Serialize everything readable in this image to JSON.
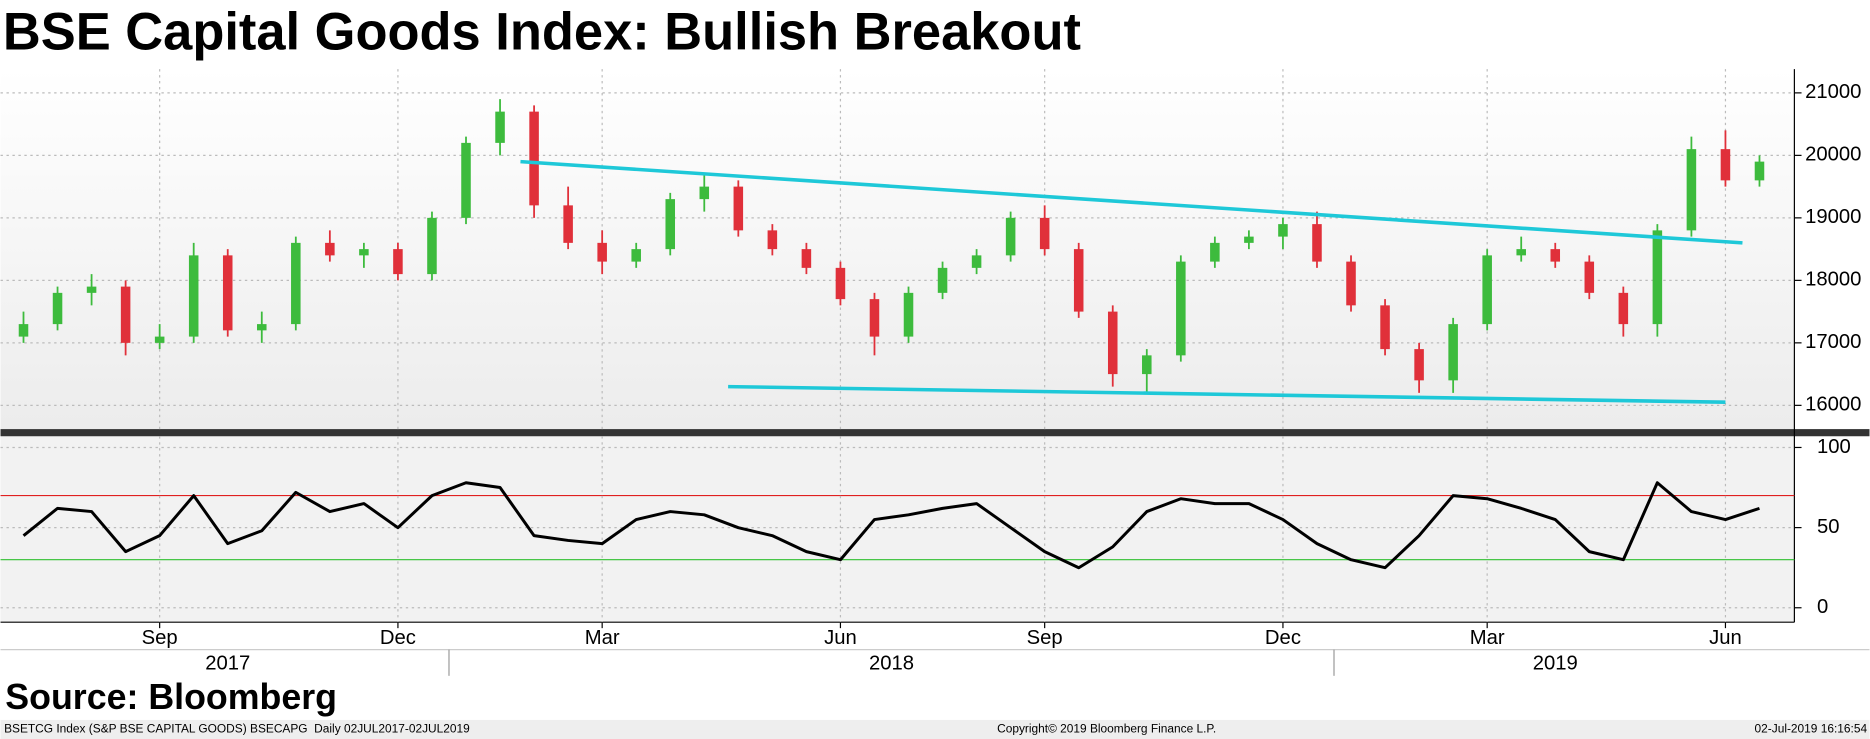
{
  "chart_data": {
    "type": "candlestick",
    "title": "BSE Capital Goods Index: Bullish Breakout",
    "source": "Source: Bloomberg",
    "footer": {
      "left": "BSETCG Index (S&P BSE CAPITAL GOODS) BSECAPG  Daily 02JUL2017-02JUL2019",
      "center": "Copyright© 2019 Bloomberg Finance L.P.",
      "right": "02-Jul-2019 16:16:54"
    },
    "categories": [
      null,
      null,
      null,
      null,
      "Sep",
      null,
      null,
      null,
      null,
      null,
      null,
      "Dec",
      null,
      null,
      null,
      null,
      null,
      "Mar",
      null,
      null,
      null,
      null,
      null,
      null,
      "Jun",
      null,
      null,
      null,
      null,
      null,
      "Sep",
      null,
      null,
      null,
      null,
      null,
      null,
      "Dec",
      null,
      null,
      null,
      null,
      null,
      "Mar",
      null,
      null,
      null,
      null,
      null,
      null,
      "Jun",
      null
    ],
    "years": [
      "2017",
      "2018",
      "2019"
    ],
    "open": [
      17100,
      17300,
      17800,
      17900,
      17000,
      17100,
      18400,
      17200,
      17300,
      18600,
      18400,
      18500,
      18100,
      19000,
      20200,
      20700,
      19200,
      18600,
      18300,
      18500,
      19300,
      19500,
      18800,
      18500,
      18200,
      17700,
      17100,
      17800,
      18200,
      18400,
      19000,
      18500,
      17500,
      16500,
      16800,
      18300,
      18600,
      18700,
      18900,
      18300,
      17600,
      16900,
      16400,
      17300,
      18400,
      18500,
      18300,
      17800,
      17300,
      18800,
      20100,
      19600
    ],
    "high": [
      17500,
      17900,
      18100,
      18000,
      17300,
      18600,
      18500,
      17500,
      18700,
      18800,
      18600,
      18600,
      19100,
      20300,
      20900,
      20800,
      19500,
      18800,
      18600,
      19400,
      19700,
      19600,
      18900,
      18600,
      18300,
      17800,
      17900,
      18300,
      18500,
      19100,
      19200,
      18600,
      17600,
      16900,
      18400,
      18700,
      18800,
      19000,
      19100,
      18400,
      17700,
      17000,
      17400,
      18500,
      18700,
      18600,
      18400,
      17900,
      18900,
      20300,
      20400,
      20000
    ],
    "low": [
      17000,
      17200,
      17600,
      16800,
      16900,
      17000,
      17100,
      17000,
      17200,
      18300,
      18200,
      18000,
      18000,
      18900,
      20000,
      19000,
      18500,
      18100,
      18200,
      18400,
      19100,
      18700,
      18400,
      18100,
      17600,
      16800,
      17000,
      17700,
      18100,
      18300,
      18400,
      17400,
      16300,
      16200,
      16700,
      18200,
      18500,
      18500,
      18200,
      17500,
      16800,
      16200,
      16200,
      17200,
      18300,
      18200,
      17700,
      17100,
      17100,
      18700,
      19500,
      19500
    ],
    "close": [
      17300,
      17800,
      17900,
      17000,
      17100,
      18400,
      17200,
      17300,
      18600,
      18400,
      18500,
      18100,
      19000,
      20200,
      20700,
      19200,
      18600,
      18300,
      18500,
      19300,
      19500,
      18800,
      18500,
      18200,
      17700,
      17100,
      17800,
      18200,
      18400,
      19000,
      18500,
      17500,
      16500,
      16800,
      18300,
      18600,
      18700,
      18900,
      18300,
      17600,
      16900,
      16400,
      17300,
      18400,
      18500,
      18300,
      17800,
      17300,
      18800,
      20100,
      19600,
      19900
    ],
    "up_color": "#3dbb3d",
    "down_color": "#e0303a",
    "ylim": [
      15620,
      21380
    ],
    "yticks": [
      16000,
      17000,
      18000,
      19000,
      20000,
      21000
    ],
    "grid": true,
    "trendlines": [
      {
        "color": "#1ec8d8",
        "x": [
          14.6,
          50.5
        ],
        "y": [
          19900,
          18600
        ]
      },
      {
        "color": "#1ec8d8",
        "x": [
          20.7,
          50
        ],
        "y": [
          16300,
          16050
        ]
      }
    ],
    "rsi": {
      "values": [
        45,
        62,
        60,
        35,
        45,
        70,
        40,
        48,
        72,
        60,
        65,
        50,
        70,
        78,
        75,
        45,
        42,
        40,
        55,
        60,
        58,
        50,
        45,
        35,
        30,
        55,
        58,
        62,
        65,
        50,
        35,
        25,
        38,
        60,
        68,
        65,
        65,
        55,
        40,
        30,
        25,
        45,
        70,
        68,
        62,
        55,
        35,
        30,
        78,
        60,
        55,
        62
      ],
      "color": "#000000",
      "ylim": [
        -9,
        107
      ],
      "yticks": [
        0,
        50,
        100
      ],
      "levels": [
        {
          "value": 70,
          "color": "#e02020"
        },
        {
          "value": 30,
          "color": "#30c030"
        }
      ]
    }
  }
}
